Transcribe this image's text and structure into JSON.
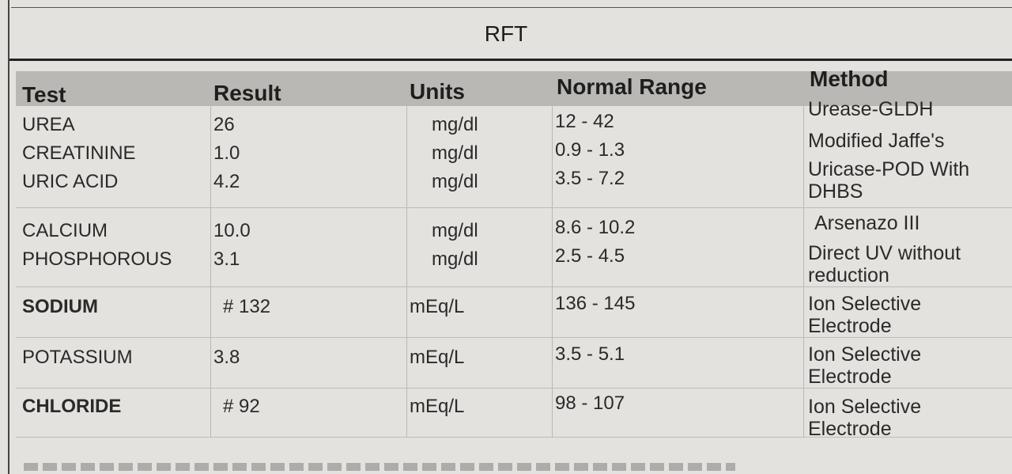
{
  "report": {
    "title": "RFT",
    "headers": {
      "test": "Test",
      "result": "Result",
      "units": "Units",
      "normal_range": "Normal Range",
      "method": "Method"
    },
    "rows": [
      {
        "test": "UREA",
        "result": "26",
        "units": "mg/dl",
        "range": "12 - 42",
        "method": [
          "Urease-GLDH"
        ]
      },
      {
        "test": "CREATININE",
        "result": "1.0",
        "units": "mg/dl",
        "range": "0.9 - 1.3",
        "method": [
          "Modified Jaffe's"
        ]
      },
      {
        "test": "URIC ACID",
        "result": "4.2",
        "units": "mg/dl",
        "range": "3.5 - 7.2",
        "method": [
          "Uricase-POD With",
          "DHBS"
        ]
      },
      {
        "test": "CALCIUM",
        "result": "10.0",
        "units": "mg/dl",
        "range": "8.6 - 10.2",
        "method": [
          "Arsenazo  III"
        ]
      },
      {
        "test": "PHOSPHOROUS",
        "result": "3.1",
        "units": "mg/dl",
        "range": "2.5 - 4.5",
        "method": [
          "Direct UV without",
          "reduction"
        ]
      },
      {
        "test": "SODIUM",
        "result": "# 132",
        "units": "mEq/L",
        "range": "136 - 145",
        "method": [
          "Ion Selective",
          "Electrode"
        ]
      },
      {
        "test": "POTASSIUM",
        "result": "3.8",
        "units": "mEq/L",
        "range": "3.5 - 5.1",
        "method": [
          "Ion Selective",
          "Electrode"
        ]
      },
      {
        "test": "CHLORIDE",
        "result": "# 92",
        "units": "mEq/L",
        "range": "98 - 107",
        "method": [
          "Ion Selective",
          "Electrode"
        ]
      }
    ]
  }
}
